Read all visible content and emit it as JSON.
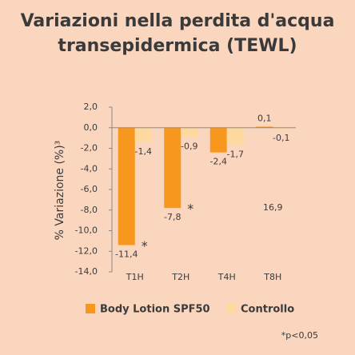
{
  "chart_data": {
    "type": "bar",
    "title": [
      "Variazioni nella perdita d'acqua",
      "transepidermica (TEWL)"
    ],
    "y_label": "% Variazione (%)³",
    "categories": [
      "T1H",
      "T2H",
      "T4H",
      "T8H"
    ],
    "series": [
      {
        "name": "Body Lotion SPF50",
        "color": "#f7971e",
        "values": [
          -11.4,
          -7.8,
          -2.4,
          0.1
        ],
        "value_labels": [
          "-11,4",
          "-7,8",
          "-2,4",
          "0,1"
        ]
      },
      {
        "name": "Controllo",
        "color": "#fdd9a0",
        "values": [
          -1.4,
          -0.9,
          -1.7,
          -0.1
        ],
        "value_labels": [
          "-1,4",
          "-0,9",
          "-1,7",
          "-0,1"
        ]
      }
    ],
    "ylim": [
      -14,
      2
    ],
    "yticks": [
      {
        "value": 2,
        "label": "2,0"
      },
      {
        "value": 0,
        "label": "0,0"
      },
      {
        "value": -2,
        "label": "-2,0"
      },
      {
        "value": -4,
        "label": "-4,0"
      },
      {
        "value": -6,
        "label": "-6,0"
      },
      {
        "value": -8,
        "label": "-8,0"
      },
      {
        "value": -10,
        "label": "-10,0"
      },
      {
        "value": -12,
        "label": "-12,0"
      },
      {
        "value": -14,
        "label": "-14,0"
      }
    ],
    "annotations": [
      "*",
      "*",
      "16,9"
    ],
    "footnote": "*p<0,05"
  }
}
